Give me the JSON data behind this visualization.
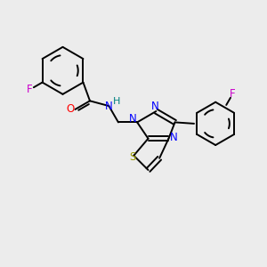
{
  "bg_color": "#ececec",
  "bond_color": "#000000",
  "atom_colors": {
    "F": "#cc00cc",
    "O": "#ff0000",
    "N": "#0000ff",
    "H": "#008080",
    "S": "#999900",
    "C": "#000000"
  },
  "lw": 1.4,
  "fs": 8.5
}
